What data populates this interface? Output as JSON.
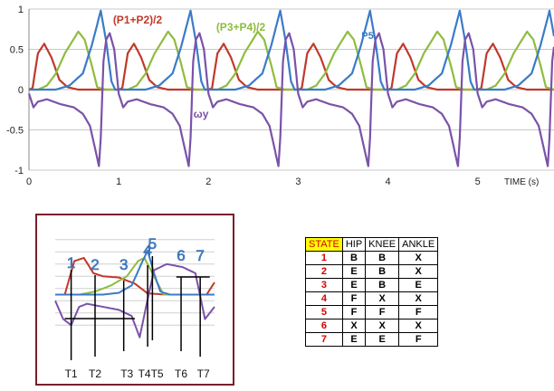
{
  "chart_data": [
    {
      "type": "line",
      "title": "",
      "xlabel": "TIME (s)",
      "ylabel": "",
      "xlim": [
        0,
        5.85
      ],
      "ylim": [
        -1,
        1
      ],
      "x_ticks": [
        0,
        1,
        2,
        3,
        4,
        5
      ],
      "y_ticks": [
        1,
        0.5,
        0,
        -0.5,
        -1
      ],
      "y_tick_labels": [
        "1",
        "0.5",
        "0",
        "-0.5",
        "-1"
      ],
      "grid": true,
      "period": 1.0,
      "series": [
        {
          "name": "(P1+P2)/2",
          "color": "#c0392b",
          "shape": [
            [
              0.0,
              0.0
            ],
            [
              0.04,
              0.02
            ],
            [
              0.1,
              0.45
            ],
            [
              0.17,
              0.57
            ],
            [
              0.25,
              0.4
            ],
            [
              0.34,
              0.12
            ],
            [
              0.43,
              0.03
            ],
            [
              0.55,
              0.0
            ],
            [
              0.9,
              0.0
            ],
            [
              1.0,
              0.0
            ]
          ]
        },
        {
          "name": "(P3+P4)/2",
          "color": "#8fbc3f",
          "shape": [
            [
              0.0,
              0.0
            ],
            [
              0.1,
              0.0
            ],
            [
              0.2,
              0.05
            ],
            [
              0.3,
              0.2
            ],
            [
              0.4,
              0.45
            ],
            [
              0.55,
              0.72
            ],
            [
              0.62,
              0.62
            ],
            [
              0.7,
              0.3
            ],
            [
              0.76,
              0.03
            ],
            [
              0.85,
              0.0
            ],
            [
              1.0,
              0.0
            ]
          ]
        },
        {
          "name": "P5",
          "color": "#3a7bc8",
          "shape": [
            [
              0.0,
              0.0
            ],
            [
              0.3,
              0.0
            ],
            [
              0.45,
              0.05
            ],
            [
              0.6,
              0.2
            ],
            [
              0.7,
              0.55
            ],
            [
              0.8,
              0.98
            ],
            [
              0.86,
              0.6
            ],
            [
              0.92,
              0.1
            ],
            [
              0.96,
              0.0
            ],
            [
              1.0,
              0.0
            ]
          ]
        },
        {
          "name": "ωy",
          "color": "#7a52a8",
          "shape": [
            [
              0.0,
              -0.05
            ],
            [
              0.05,
              -0.22
            ],
            [
              0.1,
              -0.15
            ],
            [
              0.2,
              -0.12
            ],
            [
              0.35,
              -0.18
            ],
            [
              0.5,
              -0.22
            ],
            [
              0.6,
              -0.3
            ],
            [
              0.68,
              -0.45
            ],
            [
              0.74,
              -0.75
            ],
            [
              0.78,
              -0.95
            ],
            [
              0.8,
              -0.6
            ],
            [
              0.83,
              0.35
            ],
            [
              0.86,
              0.62
            ],
            [
              0.9,
              0.7
            ],
            [
              0.95,
              0.5
            ],
            [
              1.0,
              -0.05
            ]
          ]
        }
      ]
    },
    {
      "type": "line",
      "title": "",
      "x_ticks": [
        "T1",
        "T2",
        "T3",
        "T4T5",
        "T6",
        "T7"
      ],
      "state_markers": [
        "1",
        "2",
        "3",
        "4",
        "5",
        "6",
        "7"
      ],
      "xlim": [
        0,
        1.0
      ],
      "ylim": [
        -1,
        1
      ],
      "grid": true,
      "series": [
        {
          "color": "#c0392b",
          "shape": [
            [
              0.0,
              0.0
            ],
            [
              0.06,
              0.0
            ],
            [
              0.12,
              0.55
            ],
            [
              0.18,
              0.6
            ],
            [
              0.24,
              0.35
            ],
            [
              0.3,
              0.3
            ],
            [
              0.4,
              0.28
            ],
            [
              0.5,
              0.18
            ],
            [
              0.58,
              0.02
            ],
            [
              0.7,
              0.0
            ],
            [
              0.95,
              0.0
            ],
            [
              1.0,
              0.2
            ]
          ]
        },
        {
          "color": "#8fbc3f",
          "shape": [
            [
              0.0,
              0.0
            ],
            [
              0.15,
              0.0
            ],
            [
              0.25,
              0.05
            ],
            [
              0.35,
              0.15
            ],
            [
              0.45,
              0.3
            ],
            [
              0.52,
              0.55
            ],
            [
              0.56,
              0.6
            ],
            [
              0.62,
              0.3
            ],
            [
              0.68,
              0.0
            ],
            [
              1.0,
              0.0
            ]
          ]
        },
        {
          "color": "#3a7bc8",
          "shape": [
            [
              0.0,
              0.0
            ],
            [
              0.3,
              0.0
            ],
            [
              0.4,
              0.03
            ],
            [
              0.48,
              0.15
            ],
            [
              0.54,
              0.5
            ],
            [
              0.58,
              0.72
            ],
            [
              0.62,
              0.35
            ],
            [
              0.66,
              0.05
            ],
            [
              0.72,
              0.0
            ],
            [
              1.0,
              0.0
            ]
          ]
        },
        {
          "color": "#7a52a8",
          "shape": [
            [
              0.0,
              -0.1
            ],
            [
              0.05,
              -0.4
            ],
            [
              0.1,
              -0.5
            ],
            [
              0.15,
              -0.2
            ],
            [
              0.2,
              -0.15
            ],
            [
              0.3,
              -0.2
            ],
            [
              0.4,
              -0.25
            ],
            [
              0.48,
              -0.35
            ],
            [
              0.53,
              -0.7
            ],
            [
              0.57,
              -0.2
            ],
            [
              0.62,
              0.4
            ],
            [
              0.7,
              0.5
            ],
            [
              0.8,
              0.45
            ],
            [
              0.88,
              0.35
            ],
            [
              0.94,
              -0.4
            ],
            [
              1.0,
              -0.2
            ]
          ]
        }
      ]
    },
    {
      "type": "table",
      "columns": [
        "STATE",
        "HIP",
        "KNEE",
        "ANKLE"
      ],
      "rows": [
        [
          "1",
          "B",
          "B",
          "X"
        ],
        [
          "2",
          "E",
          "B",
          "X"
        ],
        [
          "3",
          "E",
          "B",
          "E"
        ],
        [
          "4",
          "F",
          "X",
          "X"
        ],
        [
          "5",
          "F",
          "F",
          "F"
        ],
        [
          "6",
          "X",
          "X",
          "X"
        ],
        [
          "7",
          "E",
          "E",
          "F"
        ]
      ]
    }
  ]
}
